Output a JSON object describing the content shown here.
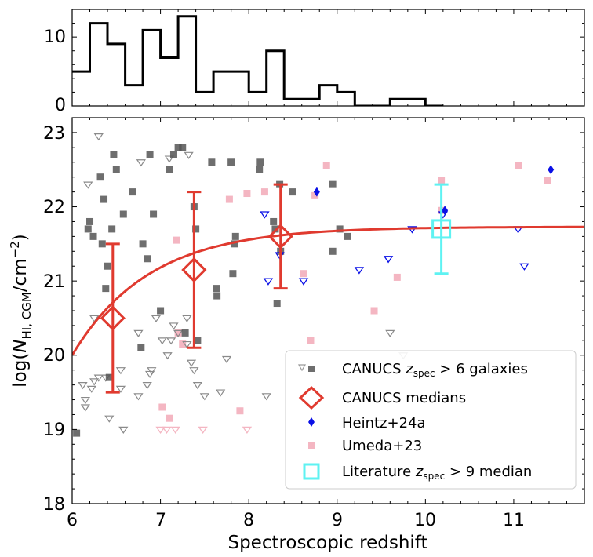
{
  "chart_data": [
    {
      "type": "histogram",
      "panel": "top",
      "xlim": [
        6,
        11.8
      ],
      "ylim": [
        0,
        14
      ],
      "yticks": [
        "0",
        "10"
      ],
      "bins": [
        {
          "x0": 5.8,
          "x1": 6.0,
          "count": 5
        },
        {
          "x0": 6.0,
          "x1": 6.2,
          "count": 5
        },
        {
          "x0": 6.2,
          "x1": 6.4,
          "count": 12
        },
        {
          "x0": 6.4,
          "x1": 6.6,
          "count": 9
        },
        {
          "x0": 6.6,
          "x1": 6.8,
          "count": 3
        },
        {
          "x0": 6.8,
          "x1": 7.0,
          "count": 11
        },
        {
          "x0": 7.0,
          "x1": 7.2,
          "count": 7
        },
        {
          "x0": 7.2,
          "x1": 7.4,
          "count": 13
        },
        {
          "x0": 7.4,
          "x1": 7.6,
          "count": 2
        },
        {
          "x0": 7.6,
          "x1": 8.0,
          "count": 5
        },
        {
          "x0": 8.0,
          "x1": 8.2,
          "count": 2
        },
        {
          "x0": 8.2,
          "x1": 8.4,
          "count": 8
        },
        {
          "x0": 8.4,
          "x1": 8.8,
          "count": 1
        },
        {
          "x0": 8.8,
          "x1": 9.0,
          "count": 3
        },
        {
          "x0": 9.0,
          "x1": 9.2,
          "count": 2
        },
        {
          "x0": 9.2,
          "x1": 9.6,
          "count": 0
        },
        {
          "x0": 9.6,
          "x1": 10.0,
          "count": 1
        },
        {
          "x0": 10.0,
          "x1": 10.2,
          "count": 0
        }
      ]
    },
    {
      "type": "scatter",
      "panel": "main",
      "xlabel": "Spectroscopic redshift",
      "ylabel_main": "log(",
      "ylabel_N": "N",
      "ylabel_sub": "HI, CGM",
      "ylabel_unit": "/cm",
      "ylabel_exp": "−2",
      "ylabel_close": ")",
      "xlim": [
        6,
        11.8
      ],
      "ylim": [
        18,
        23.2
      ],
      "xticks": [
        "6",
        "7",
        "8",
        "9",
        "10",
        "11"
      ],
      "yticks": [
        "18",
        "19",
        "20",
        "21",
        "22",
        "23"
      ],
      "grid": false,
      "legend_position": "lower-right",
      "legend": {
        "canucs_galaxies_prefix": "CANUCS ",
        "canucs_galaxies_z": "z",
        "canucs_galaxies_sub": "spec",
        "canucs_galaxies_suffix": " > 6 galaxies",
        "canucs_medians": "CANUCS medians",
        "heintz": "Heintz+24a",
        "umeda": "Umeda+23",
        "literature_prefix": "Literature ",
        "literature_z": "z",
        "literature_sub": "spec",
        "literature_suffix": " > 9 median"
      },
      "colors": {
        "canucs_points": "#555555",
        "medians": "#e03a2f",
        "heintz": "#0a10e6",
        "umeda": "#f4b6c2",
        "literature": "#5ef2f2"
      },
      "series": {
        "canucs_detections": [
          [
            6.18,
            21.7
          ],
          [
            6.2,
            21.8
          ],
          [
            6.24,
            21.6
          ],
          [
            6.32,
            22.4
          ],
          [
            6.34,
            21.5
          ],
          [
            6.36,
            22.1
          ],
          [
            6.38,
            20.9
          ],
          [
            6.4,
            21.2
          ],
          [
            6.42,
            19.7
          ],
          [
            6.45,
            21.7
          ],
          [
            6.47,
            22.7
          ],
          [
            6.5,
            22.5
          ],
          [
            6.58,
            21.9
          ],
          [
            6.68,
            22.2
          ],
          [
            6.78,
            20.1
          ],
          [
            6.8,
            21.5
          ],
          [
            6.85,
            21.3
          ],
          [
            6.88,
            22.7
          ],
          [
            6.92,
            21.9
          ],
          [
            7.0,
            20.6
          ],
          [
            7.1,
            22.5
          ],
          [
            7.15,
            22.7
          ],
          [
            7.2,
            22.8
          ],
          [
            7.25,
            22.8
          ],
          [
            7.28,
            20.3
          ],
          [
            7.38,
            22.0
          ],
          [
            7.4,
            21.7
          ],
          [
            7.42,
            20.2
          ],
          [
            7.58,
            22.6
          ],
          [
            7.63,
            20.9
          ],
          [
            7.64,
            20.8
          ],
          [
            7.8,
            22.6
          ],
          [
            7.82,
            21.1
          ],
          [
            7.84,
            21.5
          ],
          [
            7.85,
            21.6
          ],
          [
            8.12,
            22.5
          ],
          [
            8.13,
            22.6
          ],
          [
            8.28,
            21.8
          ],
          [
            8.3,
            21.7
          ],
          [
            8.32,
            20.7
          ],
          [
            8.35,
            22.3
          ],
          [
            8.36,
            21.4
          ],
          [
            8.5,
            22.2
          ],
          [
            8.95,
            22.3
          ],
          [
            8.95,
            21.4
          ],
          [
            9.03,
            21.7
          ],
          [
            9.12,
            21.6
          ],
          [
            6.05,
            18.95
          ]
        ],
        "canucs_limits": [
          [
            6.3,
            22.95
          ],
          [
            6.18,
            22.3
          ],
          [
            6.25,
            20.5
          ],
          [
            6.12,
            19.6
          ],
          [
            6.15,
            19.4
          ],
          [
            6.15,
            19.3
          ],
          [
            6.22,
            19.55
          ],
          [
            6.25,
            19.65
          ],
          [
            6.3,
            19.7
          ],
          [
            6.38,
            19.7
          ],
          [
            6.42,
            19.15
          ],
          [
            6.55,
            19.8
          ],
          [
            6.55,
            19.55
          ],
          [
            6.58,
            19.0
          ],
          [
            6.75,
            20.3
          ],
          [
            6.75,
            19.45
          ],
          [
            6.78,
            22.6
          ],
          [
            6.85,
            19.6
          ],
          [
            6.88,
            19.75
          ],
          [
            6.9,
            19.8
          ],
          [
            6.95,
            20.5
          ],
          [
            7.02,
            20.2
          ],
          [
            7.08,
            20.0
          ],
          [
            7.1,
            22.65
          ],
          [
            7.12,
            20.2
          ],
          [
            7.15,
            20.4
          ],
          [
            7.2,
            20.3
          ],
          [
            7.3,
            20.5
          ],
          [
            7.3,
            20.15
          ],
          [
            7.32,
            22.7
          ],
          [
            7.35,
            19.9
          ],
          [
            7.38,
            19.8
          ],
          [
            7.42,
            19.6
          ],
          [
            7.5,
            19.45
          ],
          [
            7.68,
            19.5
          ],
          [
            7.75,
            19.95
          ],
          [
            8.2,
            19.45
          ],
          [
            9.6,
            20.3
          ],
          [
            9.75,
            20.0
          ]
        ],
        "canucs_medians": [
          {
            "z": 6.46,
            "logN": 20.5,
            "lo": 19.5,
            "hi": 21.5
          },
          {
            "z": 7.38,
            "logN": 21.15,
            "lo": 20.1,
            "hi": 22.2
          },
          {
            "z": 8.36,
            "logN": 21.6,
            "lo": 20.9,
            "hi": 22.3
          }
        ],
        "model_curve": {
          "plateau": 21.73,
          "amplitude": 1.73,
          "scale": 0.87,
          "z0": 6.0
        },
        "heintz_detections": [
          [
            8.77,
            22.2
          ],
          [
            10.22,
            21.95
          ],
          [
            11.42,
            22.5
          ]
        ],
        "heintz_limits": [
          [
            8.18,
            21.9
          ],
          [
            8.22,
            21.0
          ],
          [
            8.35,
            21.35
          ],
          [
            8.62,
            21.0
          ],
          [
            9.25,
            21.15
          ],
          [
            9.58,
            21.3
          ],
          [
            9.85,
            21.7
          ],
          [
            10.2,
            21.9
          ],
          [
            11.05,
            21.7
          ],
          [
            11.12,
            21.2
          ]
        ],
        "umeda_detections": [
          [
            7.18,
            21.55
          ],
          [
            7.2,
            20.3
          ],
          [
            7.25,
            20.15
          ],
          [
            7.78,
            22.1
          ],
          [
            7.9,
            19.25
          ],
          [
            7.98,
            22.18
          ],
          [
            8.18,
            22.2
          ],
          [
            8.62,
            21.1
          ],
          [
            8.7,
            20.2
          ],
          [
            8.75,
            22.15
          ],
          [
            8.88,
            22.55
          ],
          [
            9.42,
            20.6
          ],
          [
            9.68,
            21.05
          ],
          [
            10.18,
            22.35
          ],
          [
            10.18,
            21.95
          ],
          [
            11.05,
            22.55
          ],
          [
            11.38,
            22.35
          ],
          [
            7.02,
            19.3
          ],
          [
            7.1,
            19.15
          ]
        ],
        "umeda_limits": [
          [
            7.0,
            19.0
          ],
          [
            7.07,
            19.0
          ],
          [
            7.17,
            19.0
          ],
          [
            7.48,
            19.0
          ],
          [
            7.98,
            19.0
          ]
        ],
        "literature_median": {
          "z": 10.18,
          "logN": 21.7,
          "lo": 21.1,
          "hi": 22.3
        }
      }
    }
  ]
}
